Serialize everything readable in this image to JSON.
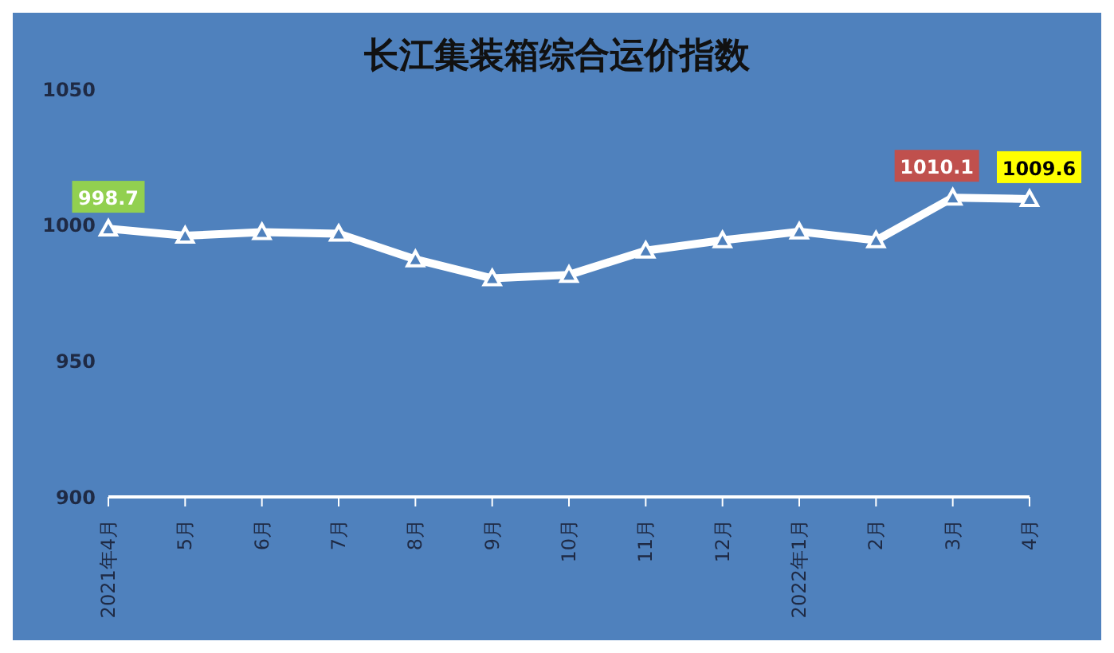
{
  "chart_data": {
    "type": "line",
    "title": "长江集装箱综合运价指数",
    "categories": [
      "2021年4月",
      "5月",
      "6月",
      "7月",
      "8月",
      "9月",
      "10月",
      "11月",
      "12月",
      "2022年1月",
      "2月",
      "3月",
      "4月"
    ],
    "series": [
      {
        "color": "#ffffff",
        "values": [
          998.7,
          996.1,
          997.4,
          996.8,
          987.4,
          980.4,
          981.7,
          990.6,
          994.4,
          997.6,
          994.4,
          1010.1,
          1009.6
        ],
        "value_labels": [
          "998.7",
          null,
          null,
          null,
          null,
          null,
          null,
          null,
          null,
          null,
          null,
          "1010.1",
          "1009.6"
        ]
      }
    ],
    "ylim": [
      900,
      1050
    ],
    "yticks": [
      900,
      950,
      1000,
      1050
    ],
    "grid": false,
    "legend": false,
    "marker": "triangle",
    "line_style": "solid"
  }
}
